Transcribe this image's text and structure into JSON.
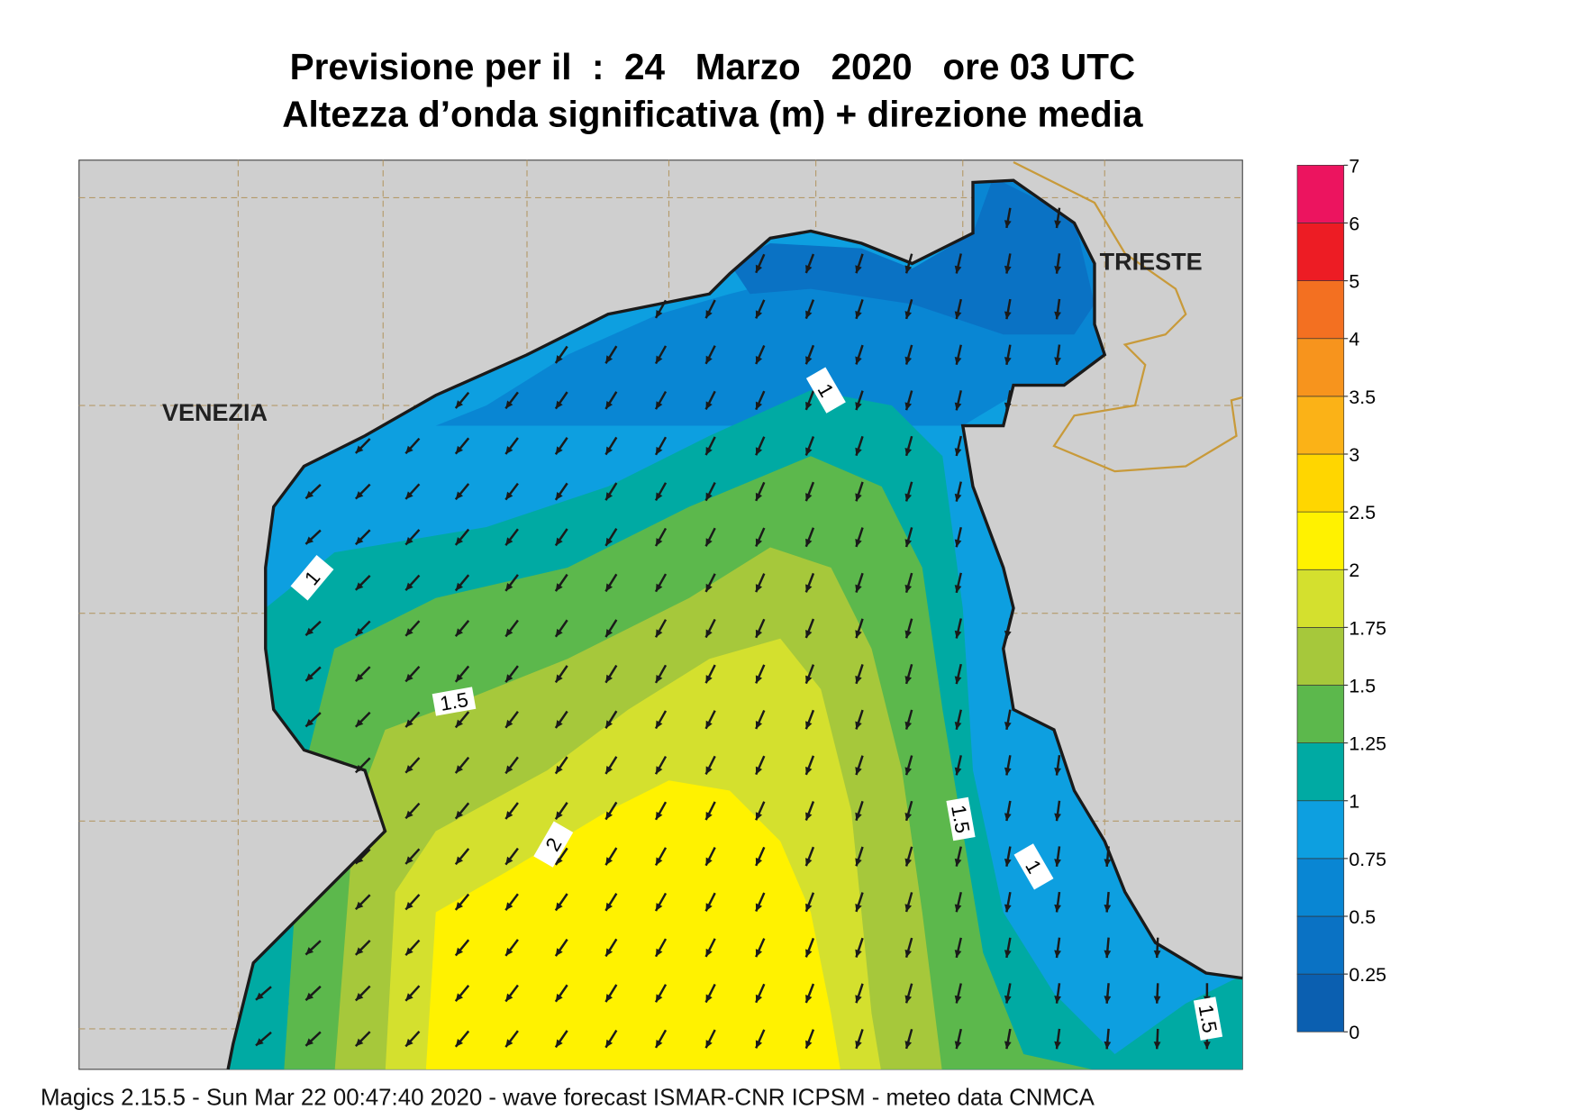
{
  "header": {
    "title": "Previsione per il  :  24   Marzo   2020   ore 03 UTC",
    "subtitle": "Altezza d’onda significativa (m) + direzione media"
  },
  "map": {
    "places": [
      "VENEZIA",
      "TRIESTE"
    ],
    "contour_labels": [
      "1",
      "1",
      "1.5",
      "2",
      "1.5",
      "1",
      "1.5"
    ]
  },
  "colorbar": {
    "ticks": [
      "0",
      "0.25",
      "0.5",
      "0.75",
      "1",
      "1.25",
      "1.5",
      "1.75",
      "2",
      "2.5",
      "3",
      "3.5",
      "4",
      "5",
      "6",
      "7"
    ],
    "colors": [
      "#0b5fb0",
      "#0a72c4",
      "#0986d3",
      "#0d9fe0",
      "#00aaa3",
      "#5cb84c",
      "#a6c83b",
      "#d4e02e",
      "#fff200",
      "#ffd600",
      "#fbb217",
      "#f7941d",
      "#f37021",
      "#ed1c24",
      "#ec145f"
    ]
  },
  "footer": "Magics 2.15.5 - Sun Mar 22 00:47:40 2020 - wave forecast  ISMAR-CNR  ICPSM - meteo data   CNMCA"
}
